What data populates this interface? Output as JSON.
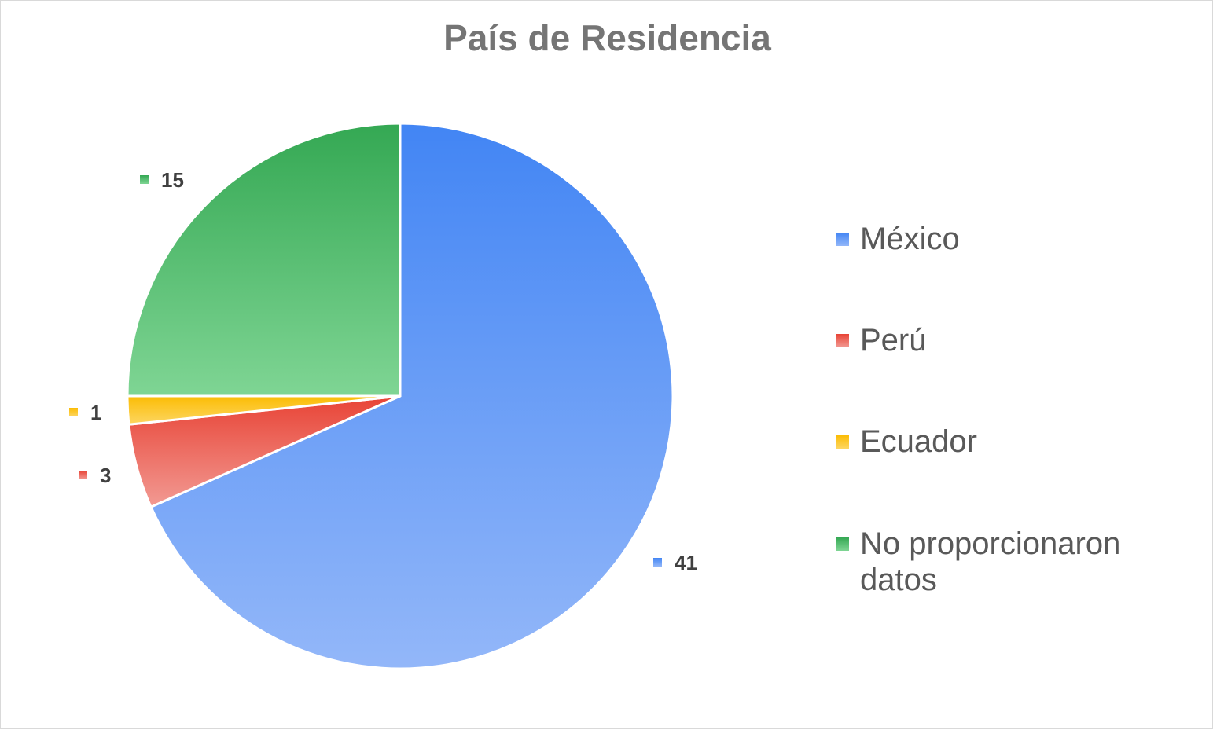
{
  "chart_data": {
    "type": "pie",
    "title": "País de Residencia",
    "categories": [
      "México",
      "Perú",
      "Ecuador",
      "No proporcionaron datos"
    ],
    "values": [
      41,
      3,
      1,
      15
    ],
    "data_labels": [
      "41",
      "3",
      "1",
      "15"
    ],
    "colors": [
      {
        "top": "#4285f4",
        "bottom": "#93b7f9"
      },
      {
        "top": "#e84335",
        "bottom": "#f29a93"
      },
      {
        "top": "#fbbc04",
        "bottom": "#fdd662"
      },
      {
        "top": "#34a853",
        "bottom": "#7fd594"
      }
    ],
    "start_angle_deg": 0,
    "direction": "clockwise",
    "legend_position": "right"
  }
}
